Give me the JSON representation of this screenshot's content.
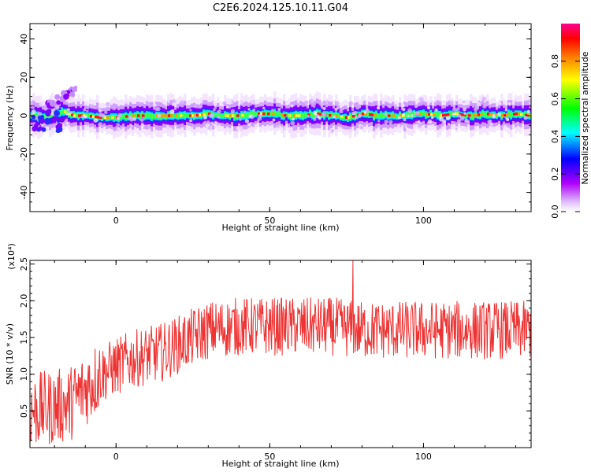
{
  "figure": {
    "title": "C2E6.2024.125.10.11.G04"
  },
  "chart_data": [
    {
      "type": "heatmap",
      "xlabel": "Height of straight line (km)",
      "ylabel": "Frequency (Hz)",
      "xlim": [
        -28,
        135
      ],
      "ylim": [
        -50,
        48
      ],
      "xticks": [
        "0",
        "50",
        "100"
      ],
      "yticks": [
        "-40",
        "-20",
        "0",
        "20",
        "40"
      ],
      "colorbar": {
        "label": "Normalized spectral amplitude",
        "ticks": [
          "0.0",
          "0.2",
          "0.4",
          "0.6",
          "0.8"
        ],
        "colors": [
          "#ffffff",
          "#b000ff",
          "#0000ff",
          "#00ffff",
          "#00ff00",
          "#ffff00",
          "#ff8000",
          "#ff0000",
          "#ff0080"
        ]
      },
      "ridge": {
        "x": [
          -27,
          -24,
          -20,
          -17,
          -14,
          -10,
          -5,
          0,
          5,
          10,
          15,
          20,
          25,
          30,
          35,
          40,
          45,
          50,
          55,
          60,
          65,
          70,
          75,
          80,
          85,
          90,
          95,
          100,
          105,
          110,
          115,
          120,
          125,
          130,
          134
        ],
        "y": [
          0,
          -1,
          1,
          2,
          0,
          0,
          -1,
          -1,
          0,
          0,
          0,
          0,
          0,
          1,
          0,
          0,
          1,
          1,
          0,
          0,
          1,
          0,
          -1,
          1,
          0,
          0,
          0,
          1,
          0,
          1,
          0,
          1,
          0,
          1,
          0
        ]
      },
      "blob": {
        "x": [
          -22,
          -13
        ],
        "y": [
          5,
          14
        ]
      }
    },
    {
      "type": "line",
      "xlabel": "Height of straight line (km)",
      "ylabel": "SNR (10 * v/v)",
      "y_multiplier": "(x10⁴)",
      "xlim": [
        -28,
        135
      ],
      "ylim": [
        0,
        2.55
      ],
      "xticks": [
        "0",
        "50",
        "100"
      ],
      "yticks": [
        "0.5",
        "1.0",
        "1.5",
        "2.0",
        "2.5"
      ],
      "color": "#ee3333",
      "trend": {
        "x": [
          -28,
          -20,
          -15,
          -10,
          -5,
          0,
          5,
          10,
          15,
          20,
          25,
          30,
          40,
          50,
          60,
          70,
          80,
          90,
          100,
          110,
          120,
          130,
          135
        ],
        "y": [
          0.5,
          0.55,
          0.6,
          0.8,
          1.0,
          1.1,
          1.2,
          1.25,
          1.3,
          1.4,
          1.5,
          1.6,
          1.65,
          1.65,
          1.65,
          1.65,
          1.6,
          1.6,
          1.6,
          1.6,
          1.6,
          1.6,
          1.6
        ]
      },
      "noise_amplitude": 0.4,
      "peak": {
        "x": 77,
        "y": 2.55
      }
    }
  ]
}
